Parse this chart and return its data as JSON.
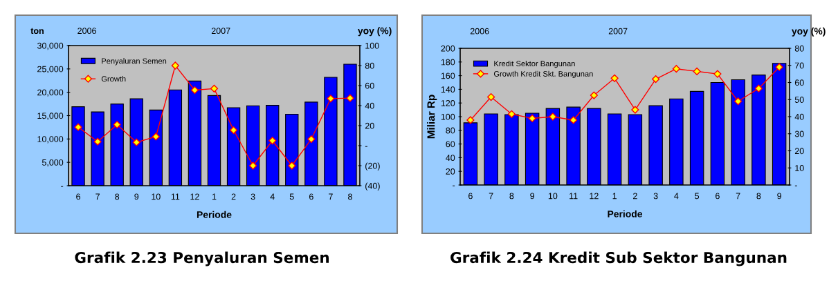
{
  "chart_data": [
    {
      "type": "bar",
      "title": "Grafik 2.23 Penyaluran Semen",
      "xlabel": "Periode",
      "ylabel": "ton",
      "y2label": "yoy (%)",
      "annotations": [
        "2006",
        "2007"
      ],
      "categories": [
        "6",
        "7",
        "8",
        "9",
        "10",
        "11",
        "12",
        "1",
        "2",
        "3",
        "4",
        "5",
        "6",
        "7",
        "8"
      ],
      "series": [
        {
          "name": "Penyaluran Semen",
          "color": "#0000ff",
          "values": [
            16900,
            15800,
            17500,
            18600,
            16200,
            20500,
            22400,
            19300,
            16700,
            17100,
            17200,
            15300,
            17900,
            23200,
            26000
          ]
        },
        {
          "name": "Growth",
          "type": "line",
          "axis": "y2",
          "color": "#ff0000",
          "marker": "diamond",
          "values": [
            18.5,
            4,
            21,
            3.3,
            9,
            80,
            55.5,
            57,
            15.5,
            -20,
            5,
            -20,
            6.5,
            47,
            47.5
          ]
        }
      ],
      "ylim": [
        0,
        30000
      ],
      "yticks": [
        {
          "value": 0,
          "label": "-"
        },
        {
          "value": 5000,
          "label": "5,000"
        },
        {
          "value": 10000,
          "label": "10,000"
        },
        {
          "value": 15000,
          "label": "15,000"
        },
        {
          "value": 20000,
          "label": "20,000"
        },
        {
          "value": 25000,
          "label": "25,000"
        },
        {
          "value": 30000,
          "label": "30,000"
        }
      ],
      "y2lim": [
        -40,
        100
      ],
      "y2ticks": [
        {
          "value": -40,
          "label": "(40)"
        },
        {
          "value": -20,
          "label": "(20)"
        },
        {
          "value": 0,
          "label": "-"
        },
        20,
        40,
        60,
        80,
        100
      ],
      "grid": false,
      "legend": "top left"
    },
    {
      "type": "bar",
      "title": "Grafik 2.24 Kredit Sub Sektor Bangunan",
      "xlabel": "Periode",
      "ylabel": "Miliar Rp",
      "y2label": "yoy (%)",
      "annotations": [
        "2006",
        "2007"
      ],
      "categories": [
        "6",
        "7",
        "8",
        "9",
        "10",
        "11",
        "12",
        "1",
        "2",
        "3",
        "4",
        "5",
        "6",
        "7",
        "8",
        "9"
      ],
      "series": [
        {
          "name": "Kredit Sektor Bangunan",
          "color": "#0000ff",
          "values": [
            91,
            104,
            103,
            105,
            112,
            114,
            112,
            104,
            103,
            116,
            126,
            137,
            150,
            154,
            161,
            178
          ]
        },
        {
          "name": "Growth Kredit Skt. Bangunan",
          "type": "line",
          "axis": "y2",
          "color": "#ff0000",
          "marker": "diamond",
          "values": [
            38,
            51.5,
            41.5,
            39,
            40,
            38,
            52.5,
            62.5,
            44,
            62,
            68,
            66.5,
            65,
            49,
            56.5,
            69
          ]
        }
      ],
      "ylim": [
        0,
        200
      ],
      "yticks": [
        {
          "value": 0,
          "label": "-"
        },
        20,
        40,
        60,
        80,
        100,
        120,
        140,
        160,
        180,
        200
      ],
      "y2lim": [
        0,
        80
      ],
      "y2ticks": [
        {
          "value": 0,
          "label": "-"
        },
        10,
        20,
        30,
        40,
        50,
        60,
        70,
        80
      ],
      "grid": false,
      "legend": "top left"
    }
  ]
}
